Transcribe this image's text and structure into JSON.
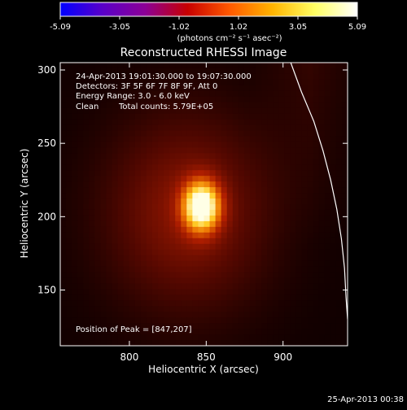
{
  "colorbar": {
    "ticks": [
      "-5.09",
      "-3.05",
      "-1.02",
      "1.02",
      "3.05",
      "5.09"
    ],
    "units": "(photons cm⁻² s⁻¹ asec⁻²)"
  },
  "footer": {
    "timestamp": "25-Apr-2013 00:38"
  },
  "chart_data": {
    "type": "heatmap",
    "title": "Reconstructed RHESSI Image",
    "xlabel": "Heliocentric X (arcsec)",
    "ylabel": "Heliocentric Y (arcsec)",
    "xlim": [
      755,
      942
    ],
    "ylim": [
      112,
      305
    ],
    "xticks": [
      800,
      850,
      900
    ],
    "yticks": [
      150,
      200,
      250,
      300
    ],
    "value_range": [
      -5.09,
      5.09
    ],
    "colormap": [
      "#0000ff",
      "#5a00c8",
      "#8c0096",
      "#c80000",
      "#ff5a00",
      "#ffb400",
      "#ffff64",
      "#ffffff"
    ],
    "peak": [
      847,
      207
    ],
    "annotations": [
      "24-Apr-2013 19:01:30.000 to 19:07:30.000",
      "Detectors: 3F 5F 6F 7F 8F 9F, Att 0",
      "Energy Range: 3.0 - 6.0 keV",
      "Clean",
      "Total counts: 5.79E+05",
      "Position of Peak = [847,207]"
    ],
    "limb": [
      [
        905,
        305
      ],
      [
        912,
        285
      ],
      [
        920,
        265
      ],
      [
        926,
        245
      ],
      [
        931,
        225
      ],
      [
        935,
        205
      ],
      [
        938,
        185
      ],
      [
        940,
        165
      ],
      [
        941,
        145
      ],
      [
        942,
        130
      ]
    ]
  }
}
